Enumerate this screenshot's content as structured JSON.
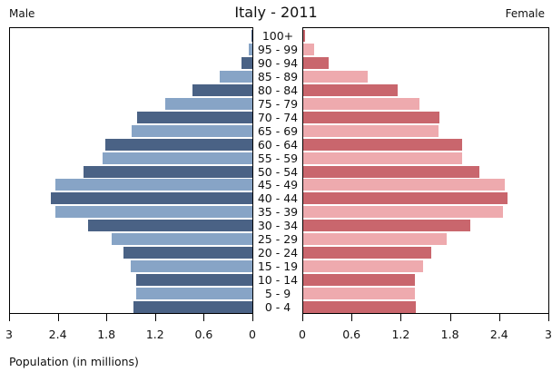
{
  "chart_data": {
    "type": "bar",
    "subtype": "population-pyramid",
    "title": "Italy - 2011",
    "left_label": "Male",
    "right_label": "Female",
    "xlabel": "Population (in millions)",
    "ylabel": "",
    "xlim": [
      0,
      3
    ],
    "male_ticks": [
      "3",
      "2.4",
      "1.8",
      "1.2",
      "0.6",
      "0"
    ],
    "female_ticks": [
      "0",
      "0.6",
      "1.2",
      "1.8",
      "2.4",
      "3"
    ],
    "categories": [
      "100+",
      "95 - 99",
      "90 - 94",
      "85 - 89",
      "80 - 84",
      "75 - 79",
      "70 - 74",
      "65 - 69",
      "60 - 64",
      "55 - 59",
      "50 - 54",
      "45 - 49",
      "40 - 44",
      "35 - 39",
      "30 - 34",
      "25 - 29",
      "20 - 24",
      "15 - 19",
      "10 - 14",
      "5 - 9",
      "0 - 4"
    ],
    "series": [
      {
        "name": "Male",
        "values": [
          0.01,
          0.05,
          0.13,
          0.4,
          0.74,
          1.07,
          1.42,
          1.49,
          1.81,
          1.85,
          2.08,
          2.43,
          2.49,
          2.43,
          2.03,
          1.74,
          1.59,
          1.5,
          1.43,
          1.43,
          1.47
        ]
      },
      {
        "name": "Female",
        "values": [
          0.02,
          0.13,
          0.31,
          0.79,
          1.15,
          1.42,
          1.67,
          1.65,
          1.94,
          1.94,
          2.15,
          2.47,
          2.5,
          2.44,
          2.04,
          1.76,
          1.57,
          1.47,
          1.37,
          1.37,
          1.38
        ]
      }
    ],
    "grid": false,
    "legend": "none"
  },
  "colors": {
    "male_dark": "#4a6285",
    "male_light": "#87a4c6",
    "female_dark": "#c9666d",
    "female_light": "#eeaaae"
  }
}
